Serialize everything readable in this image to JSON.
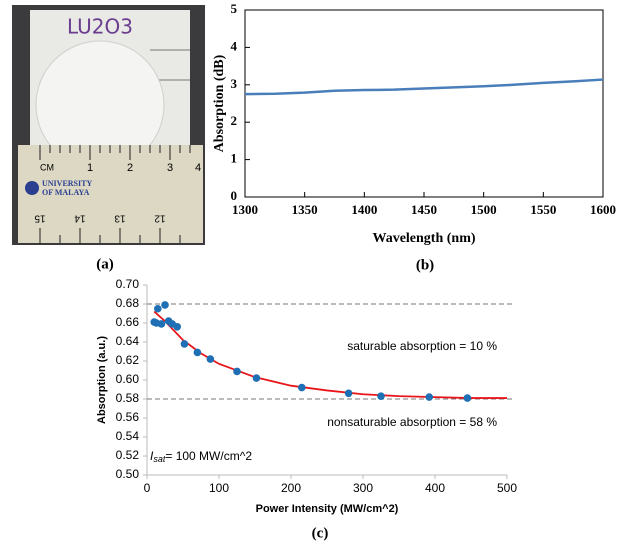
{
  "panels": {
    "a": "(a)",
    "b": "(b)",
    "c": "(c)"
  },
  "photo": {
    "label": "LU2O3",
    "ruler_top": [
      "CM",
      "1",
      "2",
      "3",
      "4"
    ],
    "logo": [
      "UNIVERSITY",
      "OF MALAYA"
    ],
    "ruler_bottom": [
      "15",
      "14",
      "13",
      "12"
    ]
  },
  "chart_data": [
    {
      "type": "line",
      "xlabel": "Wavelength (nm)",
      "ylabel": "Absorption (dB)",
      "color": "#4a7ebb",
      "x": [
        1300,
        1325,
        1350,
        1375,
        1400,
        1425,
        1450,
        1475,
        1500,
        1525,
        1550,
        1575,
        1600
      ],
      "values": [
        2.75,
        2.76,
        2.79,
        2.84,
        2.86,
        2.87,
        2.9,
        2.93,
        2.96,
        3.0,
        3.05,
        3.09,
        3.14
      ],
      "xlim": [
        1300,
        1600
      ],
      "xticks": [
        1300,
        1350,
        1400,
        1450,
        1500,
        1550,
        1600
      ],
      "ylim": [
        0,
        5
      ],
      "yticks": [
        0,
        1,
        2,
        3,
        4,
        5
      ]
    },
    {
      "type": "scatter",
      "xlabel": "Power Intensity (MW/cm^2)",
      "ylabel": "Absorption (a.u.)",
      "color": "#1f6fb5",
      "x": [
        10,
        13,
        15,
        20,
        25,
        30,
        35,
        42,
        52,
        70,
        88,
        125,
        152,
        215,
        280,
        325,
        392,
        445
      ],
      "values": [
        0.661,
        0.66,
        0.675,
        0.659,
        0.679,
        0.662,
        0.659,
        0.656,
        0.638,
        0.629,
        0.622,
        0.609,
        0.602,
        0.592,
        0.586,
        0.583,
        0.582,
        0.581
      ],
      "fit": {
        "color": "#e8161b",
        "x": [
          10,
          25,
          50,
          75,
          100,
          150,
          200,
          250,
          300,
          350,
          400,
          450,
          500
        ],
        "values": [
          0.672,
          0.662,
          0.642,
          0.628,
          0.617,
          0.603,
          0.594,
          0.589,
          0.585,
          0.583,
          0.582,
          0.581,
          0.581
        ]
      },
      "hlines": [
        0.68,
        0.58
      ],
      "annotations": [
        "saturable absorption = 10 %",
        "nonsaturable absorption = 58 %"
      ],
      "isat": {
        "symbol": "I",
        "subscript": "sat",
        "text": "= 100 MW/cm^2"
      },
      "xlim": [
        0,
        500
      ],
      "xticks": [
        0,
        100,
        200,
        300,
        400,
        500
      ],
      "ylim": [
        0.5,
        0.7
      ],
      "yticks": [
        {
          "value": 0.5,
          "label": "0.50"
        },
        {
          "value": 0.52,
          "label": "0.52"
        },
        {
          "value": 0.54,
          "label": "0.54"
        },
        {
          "value": 0.56,
          "label": "0.56"
        },
        {
          "value": 0.58,
          "label": "0.58"
        },
        {
          "value": 0.6,
          "label": "0.60"
        },
        {
          "value": 0.62,
          "label": "0.62"
        },
        {
          "value": 0.64,
          "label": "0.64"
        },
        {
          "value": 0.66,
          "label": "0.66"
        },
        {
          "value": 0.68,
          "label": "0.68"
        },
        {
          "value": 0.7,
          "label": "0.70"
        }
      ]
    }
  ]
}
